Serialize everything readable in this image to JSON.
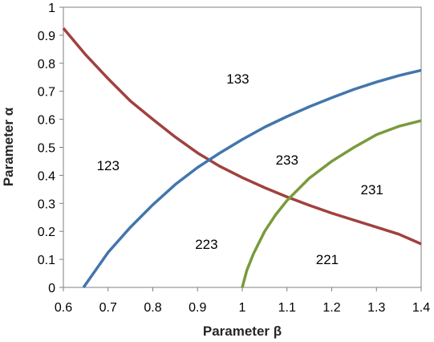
{
  "chart_data": {
    "type": "line",
    "xlabel": "Parameter β",
    "ylabel": "Parameter α",
    "xlim": [
      0.6,
      1.4
    ],
    "ylim": [
      0,
      1
    ],
    "x_ticks": [
      "0.6",
      "0.7",
      "0.8",
      "0.9",
      "1",
      "1.1",
      "1.2",
      "1.3",
      "1.4"
    ],
    "y_ticks": [
      "0",
      "0.1",
      "0.2",
      "0.3",
      "0.4",
      "0.5",
      "0.6",
      "0.7",
      "0.8",
      "0.9",
      "1"
    ],
    "grid": false,
    "series": [
      {
        "color": "#A0413F",
        "x": [
          0.6,
          0.65,
          0.7,
          0.75,
          0.8,
          0.85,
          0.9,
          0.95,
          1.0,
          1.05,
          1.1,
          1.15,
          1.2,
          1.25,
          1.3,
          1.35,
          1.4
        ],
        "y": [
          0.925,
          0.83,
          0.745,
          0.665,
          0.6,
          0.537,
          0.48,
          0.432,
          0.392,
          0.356,
          0.323,
          0.293,
          0.265,
          0.24,
          0.215,
          0.19,
          0.155
        ]
      },
      {
        "color": "#4276AC",
        "x": [
          0.645,
          0.7,
          0.75,
          0.8,
          0.85,
          0.9,
          0.95,
          1.0,
          1.05,
          1.1,
          1.15,
          1.2,
          1.25,
          1.3,
          1.35,
          1.4
        ],
        "y": [
          0.0,
          0.125,
          0.215,
          0.295,
          0.367,
          0.428,
          0.48,
          0.528,
          0.572,
          0.61,
          0.645,
          0.677,
          0.707,
          0.733,
          0.756,
          0.775
        ]
      },
      {
        "color": "#7A9A3C",
        "x": [
          1.0,
          1.01,
          1.025,
          1.05,
          1.075,
          1.1,
          1.15,
          1.2,
          1.25,
          1.3,
          1.35,
          1.4
        ],
        "y": [
          0.0,
          0.06,
          0.12,
          0.2,
          0.26,
          0.31,
          0.39,
          0.45,
          0.5,
          0.545,
          0.575,
          0.595
        ]
      }
    ],
    "annotations": [
      {
        "text": "133",
        "x": 0.99,
        "y": 0.745
      },
      {
        "text": "123",
        "x": 0.7,
        "y": 0.435
      },
      {
        "text": "233",
        "x": 1.1,
        "y": 0.455
      },
      {
        "text": "231",
        "x": 1.29,
        "y": 0.35
      },
      {
        "text": "223",
        "x": 0.92,
        "y": 0.155
      },
      {
        "text": "221",
        "x": 1.19,
        "y": 0.1
      }
    ]
  }
}
